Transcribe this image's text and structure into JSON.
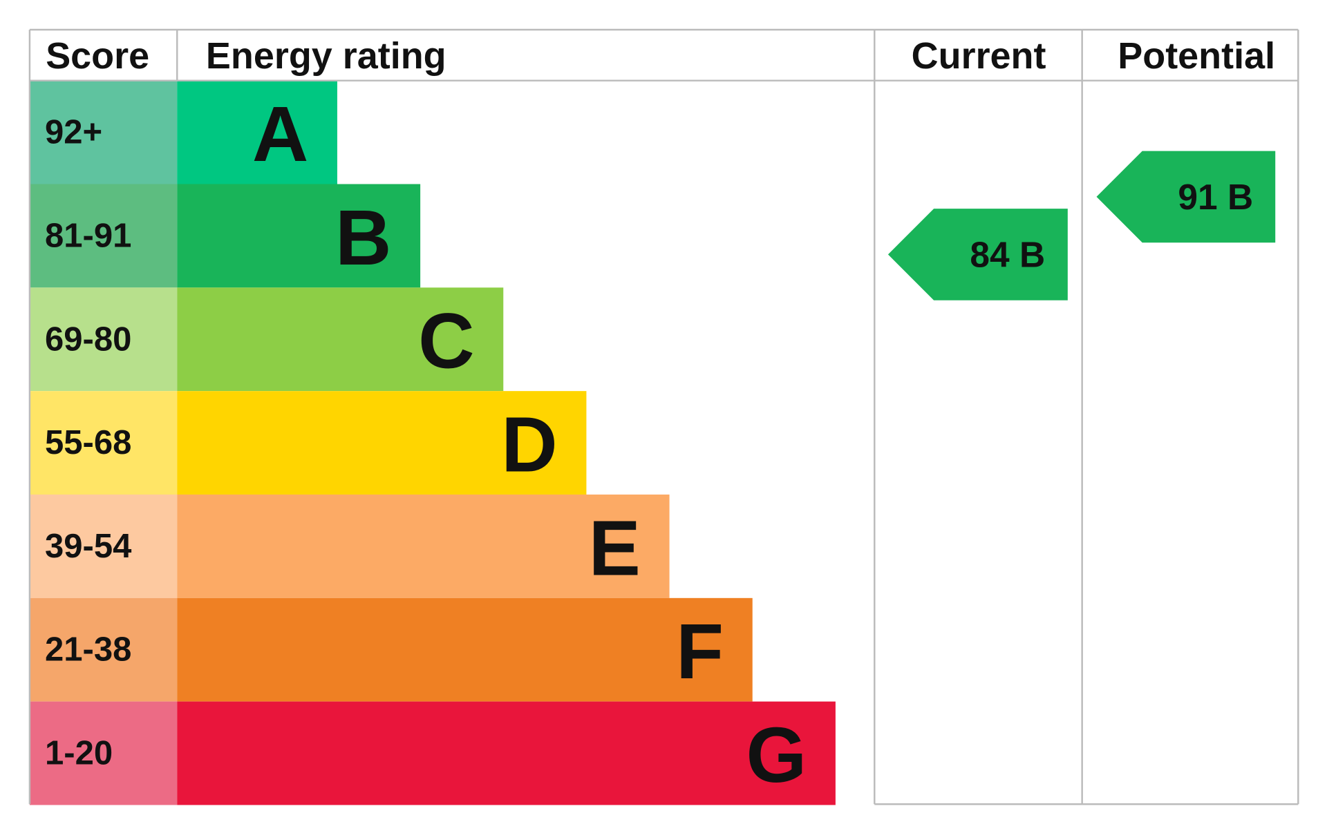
{
  "headers": [
    "Score",
    "Energy rating",
    "Current",
    "Potential"
  ],
  "bands": [
    {
      "score": "92+",
      "letter": "A",
      "color": "#00c781",
      "score_color": "#5fc39f"
    },
    {
      "score": "81-91",
      "letter": "B",
      "color": "#19b459",
      "score_color": "#5dbd80"
    },
    {
      "score": "69-80",
      "letter": "C",
      "color": "#8dce46",
      "score_color": "#b7e08c"
    },
    {
      "score": "55-68",
      "letter": "D",
      "color": "#ffd500",
      "score_color": "#ffe566"
    },
    {
      "score": "39-54",
      "letter": "E",
      "color": "#fcaa65",
      "score_color": "#fdc9a0"
    },
    {
      "score": "21-38",
      "letter": "F",
      "color": "#ef8023",
      "score_color": "#f5a66a"
    },
    {
      "score": "1-20",
      "letter": "G",
      "color": "#e9153b",
      "score_color": "#ec6b85"
    }
  ],
  "current": {
    "label": "84 B",
    "color": "#19b459"
  },
  "potential": {
    "label": "91 B",
    "color": "#19b459"
  }
}
